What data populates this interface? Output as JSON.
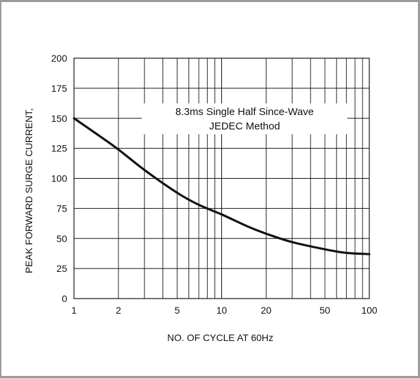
{
  "chart_data": {
    "type": "line",
    "title": "",
    "xlabel": "NO. OF CYCLE AT 60Hz",
    "ylabel": "PEAK FORWARD SURGE CURRENT,",
    "x_scale": "log",
    "xlim": [
      1,
      100
    ],
    "ylim": [
      0,
      200
    ],
    "x_ticks": [
      1,
      2,
      5,
      10,
      20,
      50,
      100
    ],
    "y_ticks": [
      0,
      25,
      50,
      75,
      100,
      125,
      150,
      175,
      200
    ],
    "grid": true,
    "annotation": [
      "8.3ms Single Half Since-Wave",
      "JEDEC Method"
    ],
    "series": [
      {
        "color": "#111111",
        "points": [
          [
            1,
            150
          ],
          [
            1.5,
            135
          ],
          [
            2,
            124
          ],
          [
            3,
            107
          ],
          [
            5,
            88
          ],
          [
            7,
            78
          ],
          [
            10,
            70
          ],
          [
            15,
            60
          ],
          [
            20,
            54
          ],
          [
            30,
            47
          ],
          [
            50,
            41
          ],
          [
            70,
            38
          ],
          [
            100,
            37
          ]
        ]
      }
    ]
  }
}
